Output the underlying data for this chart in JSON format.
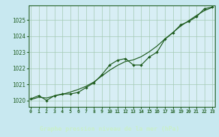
{
  "xlabel": "Graphe pression niveau de la mer (hPa)",
  "bg_color": "#c8e8f0",
  "plot_bg_color": "#d8eef5",
  "line_color": "#1e5c1e",
  "grid_color": "#a0c8b0",
  "bottom_bar_color": "#2a6a2a",
  "bottom_label_color": "#c8f0c8",
  "hours": [
    0,
    1,
    2,
    3,
    4,
    5,
    6,
    7,
    8,
    9,
    10,
    11,
    12,
    13,
    14,
    15,
    16,
    17,
    18,
    19,
    20,
    21,
    22,
    23
  ],
  "pressure_actual": [
    1020.1,
    1020.3,
    1020.0,
    1020.3,
    1020.4,
    1020.4,
    1020.5,
    1020.8,
    1021.1,
    1021.6,
    1022.2,
    1022.5,
    1022.6,
    1022.2,
    1022.2,
    1022.7,
    1023.0,
    1023.8,
    1024.2,
    1024.7,
    1024.9,
    1025.2,
    1025.7,
    1025.8
  ],
  "pressure_smooth": [
    1020.05,
    1020.2,
    1020.15,
    1020.28,
    1020.38,
    1020.52,
    1020.68,
    1020.88,
    1021.15,
    1021.52,
    1021.88,
    1022.18,
    1022.42,
    1022.52,
    1022.72,
    1023.02,
    1023.38,
    1023.82,
    1024.22,
    1024.62,
    1024.95,
    1025.28,
    1025.58,
    1025.78
  ],
  "ylim": [
    1019.6,
    1025.9
  ],
  "yticks": [
    1020,
    1021,
    1022,
    1023,
    1024,
    1025
  ],
  "xticks": [
    0,
    1,
    2,
    3,
    4,
    5,
    6,
    7,
    8,
    9,
    10,
    11,
    12,
    13,
    14,
    15,
    16,
    17,
    18,
    19,
    20,
    21,
    22,
    23
  ]
}
